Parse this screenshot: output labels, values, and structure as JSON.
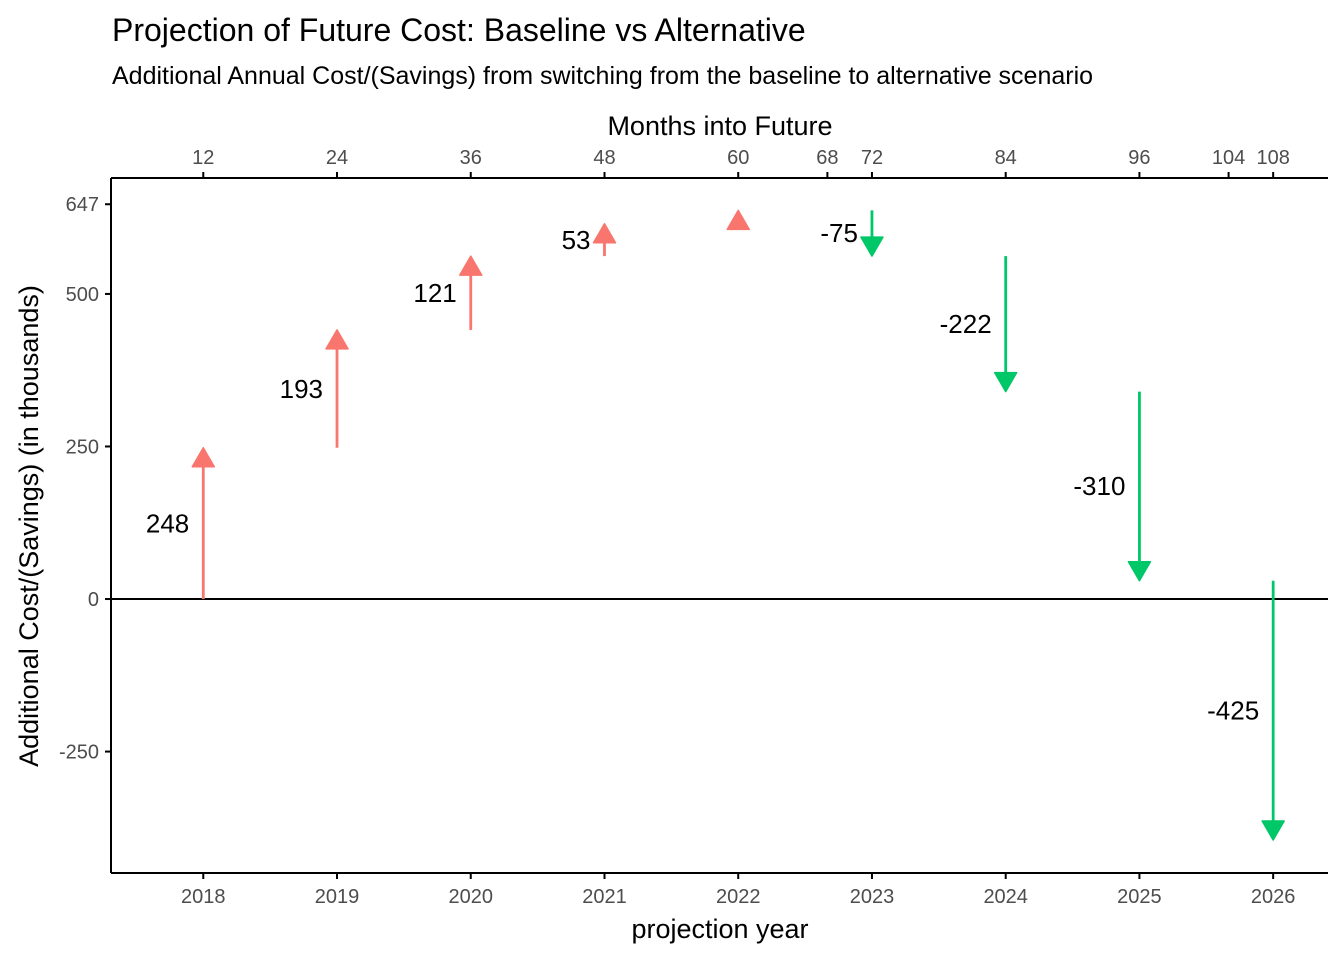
{
  "chart_data": {
    "type": "arrow",
    "title": "Projection of Future Cost: Baseline vs Alternative",
    "subtitle": "Additional Annual Cost/(Savings) from switching from the baseline to alternative scenario",
    "xlabel": "projection year",
    "x2label": "Months into Future",
    "ylabel": "Additional Cost/(Savings) (in thousands)",
    "x_ticks": [
      2018,
      2019,
      2020,
      2021,
      2022,
      2023,
      2024,
      2025,
      2026
    ],
    "x2_ticks": [
      12,
      24,
      36,
      48,
      60,
      68,
      72,
      84,
      96,
      104,
      108
    ],
    "y_ticks": [
      -250,
      0,
      250,
      500,
      647
    ],
    "xlim": [
      2017.31,
      2026.41
    ],
    "ylim": [
      -449,
      690
    ],
    "colors": {
      "increase": "#f8766d",
      "decrease": "#00c767",
      "axis": "#000000"
    },
    "arrows": [
      {
        "year": 2018,
        "start": 0,
        "end": 248,
        "label": "248"
      },
      {
        "year": 2019,
        "start": 248,
        "end": 441,
        "label": "193"
      },
      {
        "year": 2020,
        "start": 441,
        "end": 562,
        "label": "121"
      },
      {
        "year": 2021,
        "start": 562,
        "end": 615,
        "label": "53"
      },
      {
        "year": 2022,
        "start": 615,
        "end": 637,
        "label": ""
      },
      {
        "year": 2023,
        "start": 637,
        "end": 562,
        "label": "-75"
      },
      {
        "year": 2024,
        "start": 562,
        "end": 340,
        "label": "-222"
      },
      {
        "year": 2025,
        "start": 340,
        "end": 30,
        "label": "-310"
      },
      {
        "year": 2026,
        "start": 30,
        "end": -395,
        "label": "-425"
      }
    ]
  }
}
